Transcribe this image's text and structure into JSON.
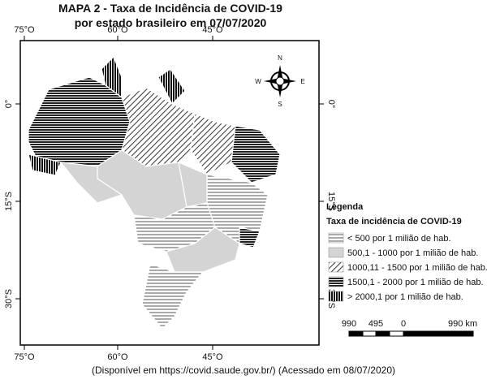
{
  "title": [
    "MAPA 2 - Taxa de Incidência de COVID-19",
    "por estado brasileiro em 07/07/2020"
  ],
  "top_labels": [
    "75°O",
    "60°O",
    "45°O"
  ],
  "bottom_labels": [
    "75°O",
    "60°O",
    "45°O"
  ],
  "left_labels": [
    "0°",
    "15°S",
    "30°S"
  ],
  "right_labels": [
    "0°",
    "15°S",
    "30°S"
  ],
  "compass": {
    "n": "N",
    "s": "S",
    "e": "E",
    "w": "W"
  },
  "legend": {
    "title": "Legenda",
    "subtitle": "Taxa de incidência de COVID-19",
    "items": [
      "< 500 por 1 milião de hab.",
      "500,1 - 1000 por 1 milião de hab.",
      "1000,11 - 1500 por 1 milião de hab.",
      "1500,1 - 2000 por 1 milião de hab.",
      "> 2000,1  por 1 milião de hab."
    ]
  },
  "scale": [
    "990",
    "495",
    "0",
    "990 km"
  ],
  "source": "(Disponível em https://covid.saude.gov.br/) (Acessado em 08/07/2020)"
}
